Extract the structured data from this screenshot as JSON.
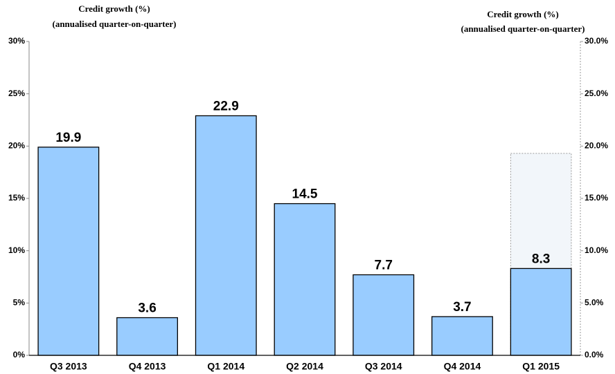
{
  "chart_data": {
    "type": "bar",
    "y_title": [
      "Credit growth (%)",
      "(annualised quarter-on-quarter)"
    ],
    "y2_title": [
      "Credit growth (%)",
      "(annualised quarter-on-quarter)"
    ],
    "categories": [
      "Q3 2013",
      "Q4 2013",
      "Q1 2014",
      "Q2 2014",
      "Q3 2014",
      "Q4 2014",
      "Q1 2015"
    ],
    "series": [
      {
        "color": "#99ccff",
        "values": [
          19.9,
          3.6,
          22.9,
          14.5,
          7.7,
          3.7,
          8.3
        ]
      },
      {
        "color": "#f2f6fa",
        "style": "dotted",
        "values": [
          null,
          null,
          null,
          null,
          null,
          null,
          19.3
        ]
      }
    ],
    "ylim": [
      0,
      30
    ],
    "yticks": [
      {
        "value": 0,
        "label": "0%"
      },
      {
        "value": 5,
        "label": "5%"
      },
      {
        "value": 10,
        "label": "10%"
      },
      {
        "value": 15,
        "label": "15%"
      },
      {
        "value": 20,
        "label": "20%"
      },
      {
        "value": 25,
        "label": "25%"
      },
      {
        "value": 30,
        "label": "30%"
      }
    ],
    "y2lim": [
      0,
      30
    ],
    "y2ticks": [
      {
        "value": 0,
        "label": "0.0%"
      },
      {
        "value": 5,
        "label": "5.0%"
      },
      {
        "value": 10,
        "label": "10.0%"
      },
      {
        "value": 15,
        "label": "15.0%"
      },
      {
        "value": 20,
        "label": "20.0%"
      },
      {
        "value": 25,
        "label": "25.0%"
      },
      {
        "value": 30,
        "label": "30.0%"
      }
    ],
    "grid": false
  }
}
